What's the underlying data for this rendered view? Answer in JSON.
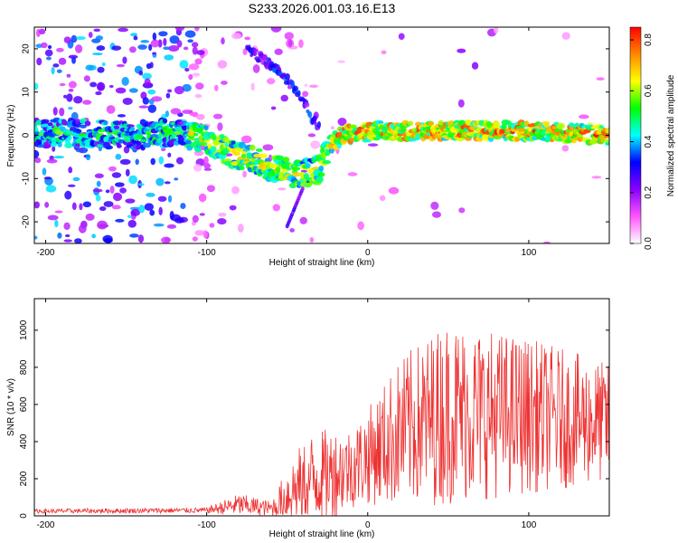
{
  "figure_title": "S233.2026.001.03.16.E13",
  "chart_data": [
    {
      "type": "heatmap",
      "xlabel": "Height of straight line (km)",
      "ylabel": "Frequency (Hz)",
      "xlim": [
        -207,
        150
      ],
      "ylim": [
        -25,
        25
      ],
      "xticks": [
        -200,
        -100,
        0,
        100
      ],
      "yticks": [
        -20,
        -10,
        0,
        10,
        20
      ],
      "colorbar": {
        "label": "Normalized spectral amplitude",
        "range": [
          0,
          0.85
        ],
        "ticks": [
          0.0,
          0.2,
          0.4,
          0.6,
          0.8
        ],
        "colormap": [
          "#ffffff",
          "#ff55ff",
          "#8800ff",
          "#0000ff",
          "#00ffff",
          "#00ff00",
          "#ffff00",
          "#ff8800",
          "#ff0000"
        ]
      },
      "ridge": [
        {
          "x": -180,
          "y": 0.5
        },
        {
          "x": -150,
          "y": 0
        },
        {
          "x": -120,
          "y": 0.5
        },
        {
          "x": -100,
          "y": -1
        },
        {
          "x": -85,
          "y": -4
        },
        {
          "x": -70,
          "y": -6
        },
        {
          "x": -55,
          "y": -8
        },
        {
          "x": -45,
          "y": -9
        },
        {
          "x": -30,
          "y": -8
        },
        {
          "x": -25,
          "y": -2
        },
        {
          "x": -15,
          "y": 0
        },
        {
          "x": 0,
          "y": 1
        },
        {
          "x": 50,
          "y": 1
        },
        {
          "x": 100,
          "y": 1
        },
        {
          "x": 150,
          "y": 0
        }
      ],
      "secondary_ridge": [
        {
          "x": -75,
          "y": 20
        },
        {
          "x": -55,
          "y": 15
        },
        {
          "x": -40,
          "y": 8
        },
        {
          "x": -35,
          "y": 4
        },
        {
          "x": -30,
          "y": 2
        }
      ]
    },
    {
      "type": "line",
      "xlabel": "Height of straight line (km)",
      "ylabel": "SNR (10 * v/v)",
      "xlim": [
        -207,
        150
      ],
      "ylim": [
        0,
        1170
      ],
      "xticks": [
        -200,
        -100,
        0,
        100
      ],
      "yticks": [
        0,
        200,
        400,
        600,
        800,
        1000
      ],
      "line_color": "#ee3333",
      "envelope": [
        {
          "x": -207,
          "mean": 25,
          "amp": 12
        },
        {
          "x": -100,
          "mean": 30,
          "amp": 15
        },
        {
          "x": -80,
          "mean": 60,
          "amp": 60
        },
        {
          "x": -60,
          "mean": 40,
          "amp": 40
        },
        {
          "x": -45,
          "mean": 150,
          "amp": 200
        },
        {
          "x": -35,
          "mean": 200,
          "amp": 250
        },
        {
          "x": -25,
          "mean": 220,
          "amp": 250
        },
        {
          "x": -10,
          "mean": 260,
          "amp": 220
        },
        {
          "x": 0,
          "mean": 320,
          "amp": 260
        },
        {
          "x": 20,
          "mean": 450,
          "amp": 400
        },
        {
          "x": 50,
          "mean": 560,
          "amp": 500
        },
        {
          "x": 100,
          "mean": 540,
          "amp": 420
        },
        {
          "x": 150,
          "mean": 500,
          "amp": 320
        }
      ]
    }
  ]
}
